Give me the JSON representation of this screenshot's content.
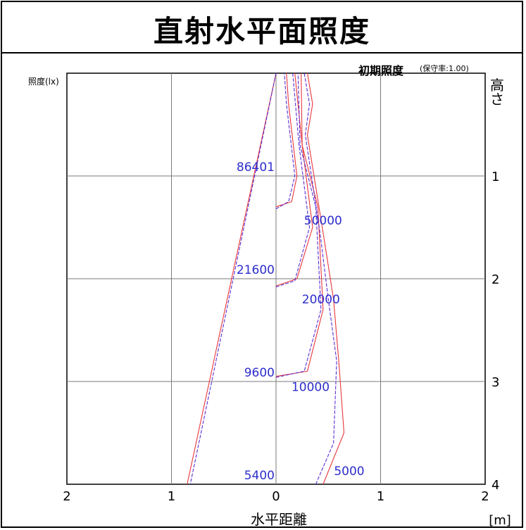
{
  "title": "直射水平面照度",
  "subtitle_main": "初期照度",
  "subtitle_note": "(保守率:1.00)",
  "ylabel": "照度(lx)",
  "right_axis_label": "高さ",
  "xlabel": "水平距離",
  "x_unit": "[m]",
  "chart_data": {
    "type": "line",
    "title": "直射水平面照度",
    "xlabel": "水平距離",
    "x_unit": "[m]",
    "ylabel": "照度(lx)",
    "right_axis_label": "高さ",
    "xlim": [
      -2,
      2
    ],
    "ylim": [
      0,
      4
    ],
    "x_tick_labels": [
      "2",
      "1",
      "0",
      "1",
      "2"
    ],
    "x_ticks": [
      -2,
      -1,
      0,
      1,
      2
    ],
    "y_ticks": [
      1,
      2,
      3,
      4
    ],
    "y_tick_labels": [
      "1",
      "2",
      "3",
      "4"
    ],
    "grid": true,
    "axis_labels_left": [
      {
        "text": "86401",
        "height": 0.93
      },
      {
        "text": "21600",
        "height": 1.93
      },
      {
        "text": "9600",
        "height": 2.93
      },
      {
        "text": "5400",
        "height": 3.93
      }
    ],
    "contour_labels": [
      {
        "text": "50000",
        "x": 0.45,
        "height": 1.43
      },
      {
        "text": "20000",
        "x": 0.43,
        "height": 2.2
      },
      {
        "text": "10000",
        "x": 0.33,
        "height": 3.05
      },
      {
        "text": "5000",
        "x": 0.7,
        "height": 3.87
      }
    ],
    "series": [
      {
        "color": "#e8383d",
        "values": [
          [
            0,
            0
          ],
          [
            -0.85,
            4
          ]
        ]
      },
      {
        "color": "#5a2fd6",
        "values": [
          [
            0,
            0
          ],
          [
            -0.82,
            4
          ]
        ]
      },
      {
        "color": "#e8383d",
        "values": [
          [
            0.0,
            1.3
          ],
          [
            0.15,
            1.25
          ],
          [
            0.2,
            1.0
          ],
          [
            0.12,
            0.3
          ],
          [
            0.1,
            0
          ]
        ]
      },
      {
        "color": "#5a2fd6",
        "values": [
          [
            0.0,
            1.32
          ],
          [
            0.12,
            1.25
          ],
          [
            0.18,
            1.0
          ],
          [
            0.1,
            0.3
          ],
          [
            0.08,
            0
          ]
        ]
      },
      {
        "color": "#e8383d",
        "values": [
          [
            0.0,
            2.07
          ],
          [
            0.2,
            2.0
          ],
          [
            0.35,
            1.5
          ],
          [
            0.25,
            0.7
          ],
          [
            0.18,
            0
          ]
        ]
      },
      {
        "color": "#5a2fd6",
        "values": [
          [
            0.0,
            2.08
          ],
          [
            0.18,
            2.02
          ],
          [
            0.32,
            1.5
          ],
          [
            0.22,
            0.7
          ],
          [
            0.16,
            0
          ]
        ]
      },
      {
        "color": "#e8383d",
        "values": [
          [
            0.0,
            2.95
          ],
          [
            0.3,
            2.9
          ],
          [
            0.45,
            2.3
          ],
          [
            0.4,
            1.3
          ],
          [
            0.25,
            0.7
          ],
          [
            0.24,
            0
          ]
        ]
      },
      {
        "color": "#5a2fd6",
        "values": [
          [
            0.0,
            2.96
          ],
          [
            0.27,
            2.9
          ],
          [
            0.43,
            2.3
          ],
          [
            0.38,
            1.3
          ],
          [
            0.23,
            0.7
          ],
          [
            0.21,
            0
          ]
        ]
      },
      {
        "color": "#e8383d",
        "values": [
          [
            0.45,
            4.0
          ],
          [
            0.65,
            3.5
          ],
          [
            0.6,
            2.8
          ],
          [
            0.55,
            2.2
          ],
          [
            0.45,
            1.55
          ],
          [
            0.3,
            0.6
          ],
          [
            0.35,
            0.3
          ],
          [
            0.3,
            0
          ]
        ]
      },
      {
        "color": "#5a2fd6",
        "values": [
          [
            0.38,
            4.0
          ],
          [
            0.55,
            3.6
          ],
          [
            0.58,
            2.8
          ],
          [
            0.5,
            2.2
          ],
          [
            0.42,
            1.55
          ],
          [
            0.28,
            0.6
          ],
          [
            0.32,
            0.3
          ],
          [
            0.27,
            0
          ]
        ]
      }
    ]
  }
}
